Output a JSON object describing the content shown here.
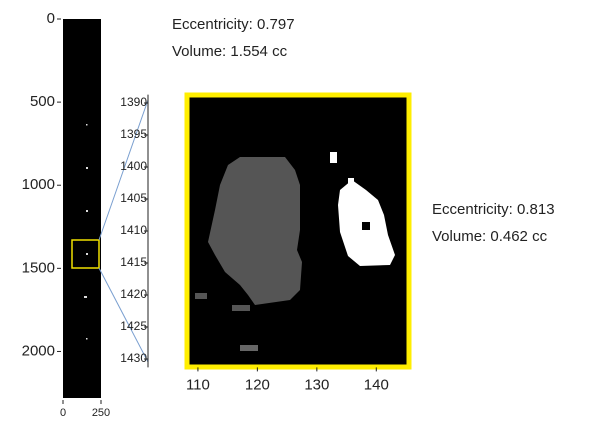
{
  "chart_data": [
    {
      "type": "image",
      "xlim": [
        0,
        250
      ],
      "ylim": [
        0,
        2280
      ],
      "xticks": [
        0,
        250
      ],
      "yticks": [
        0,
        500,
        1000,
        1500,
        2000
      ],
      "annotations": [
        "Eccentricity: 0.797",
        "Volume: 1.554 cc"
      ]
    },
    {
      "type": "image",
      "xlim": [
        108.5,
        145.5
      ],
      "ylim": [
        1389,
        1431
      ],
      "xticks": [
        110,
        120,
        130,
        140
      ],
      "yticks": [
        1390,
        1395,
        1400,
        1405,
        1410,
        1415,
        1420,
        1425,
        1430
      ],
      "annotations": [
        "Eccentricity: 0.813",
        "Volume: 0.462 cc"
      ]
    }
  ]
}
